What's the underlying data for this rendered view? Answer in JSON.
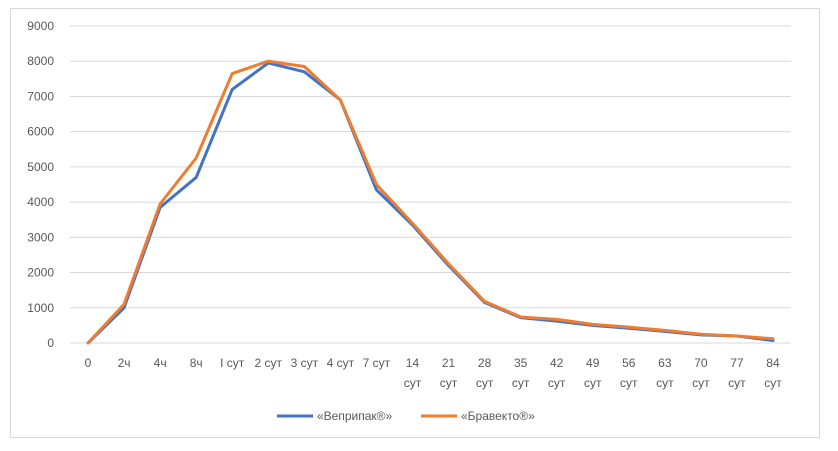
{
  "chart_data": {
    "type": "line",
    "title": "",
    "xlabel": "",
    "ylabel": "",
    "ylim": [
      0,
      9000
    ],
    "yticks": [
      0,
      1000,
      2000,
      3000,
      4000,
      5000,
      6000,
      7000,
      8000,
      9000
    ],
    "grid": true,
    "legend_position": "bottom",
    "categories": [
      [
        "0"
      ],
      [
        "2ч"
      ],
      [
        "4ч"
      ],
      [
        "8ч"
      ],
      [
        "I сут"
      ],
      [
        "2 сут"
      ],
      [
        "3 сут"
      ],
      [
        "4 сут"
      ],
      [
        "7 сут"
      ],
      [
        "14",
        "сут"
      ],
      [
        "21",
        "сут"
      ],
      [
        "28",
        "сут"
      ],
      [
        "35",
        "сут"
      ],
      [
        "42",
        "сут"
      ],
      [
        "49",
        "сут"
      ],
      [
        "56",
        "сут"
      ],
      [
        "63",
        "сут"
      ],
      [
        "70",
        "сут"
      ],
      [
        "77",
        "сут"
      ],
      [
        "84",
        "сут"
      ]
    ],
    "series": [
      {
        "name": "«Веприпак®»",
        "color": "#4472c4",
        "values": [
          0,
          1000,
          3850,
          4700,
          7200,
          7950,
          7700,
          6900,
          4350,
          3350,
          2200,
          1150,
          720,
          620,
          500,
          420,
          330,
          230,
          200,
          70
        ]
      },
      {
        "name": "«Бравекто®»",
        "color": "#ed7d31",
        "values": [
          0,
          1100,
          3950,
          5250,
          7650,
          8000,
          7850,
          6900,
          4500,
          3400,
          2250,
          1180,
          740,
          670,
          530,
          450,
          360,
          250,
          200,
          120
        ]
      }
    ]
  }
}
